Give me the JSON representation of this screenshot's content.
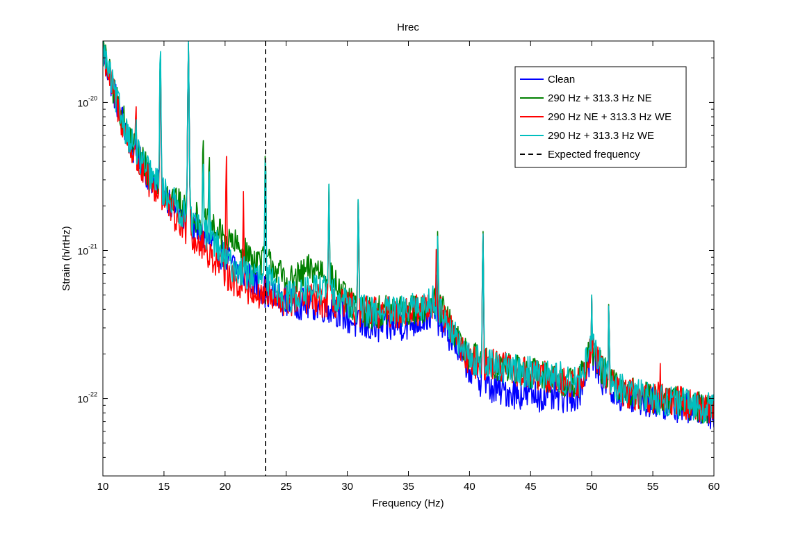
{
  "chart_data": {
    "type": "line",
    "title": "Hrec",
    "xlabel": "Frequency (Hz)",
    "ylabel": "Strain (h/rtHz)",
    "xlim": [
      10,
      60
    ],
    "ylim": [
      3e-23,
      2.6e-20
    ],
    "yscale": "log",
    "grid": false,
    "legend_position": "top-right",
    "x_ticks": [
      10,
      15,
      20,
      25,
      30,
      35,
      40,
      45,
      50,
      55,
      60
    ],
    "y_ticks": [
      {
        "value": 1e-22,
        "base": "10",
        "exp": "-22"
      },
      {
        "value": 1e-21,
        "base": "10",
        "exp": "-21"
      },
      {
        "value": 1e-20,
        "base": "10",
        "exp": "-20"
      }
    ],
    "vline": {
      "x": 23.3,
      "name": "Expected frequency",
      "color": "#000000",
      "style": "dashed"
    },
    "series": [
      {
        "name": "Clean",
        "color": "#0000ff",
        "baseline": [
          [
            10,
            2.2e-20
          ],
          [
            11,
            1.1e-20
          ],
          [
            12,
            6e-21
          ],
          [
            13,
            4e-21
          ],
          [
            14,
            3e-21
          ],
          [
            15,
            2.5e-21
          ],
          [
            16,
            1.9e-21
          ],
          [
            17,
            1.5e-21
          ],
          [
            18,
            1.3e-21
          ],
          [
            19,
            1.1e-21
          ],
          [
            20,
            9e-22
          ],
          [
            21,
            7.5e-22
          ],
          [
            22,
            6.5e-22
          ],
          [
            23,
            5.5e-22
          ],
          [
            24,
            4.8e-22
          ],
          [
            25,
            4.6e-22
          ],
          [
            26,
            4.4e-22
          ],
          [
            27,
            4.3e-22
          ],
          [
            28,
            4.2e-22
          ],
          [
            29,
            4e-22
          ],
          [
            30,
            3.5e-22
          ],
          [
            31,
            3.1e-22
          ],
          [
            32,
            3e-22
          ],
          [
            33,
            3e-22
          ],
          [
            34,
            3.1e-22
          ],
          [
            35,
            3.2e-22
          ],
          [
            36,
            3.4e-22
          ],
          [
            37,
            3.8e-22
          ],
          [
            38,
            3e-22
          ],
          [
            39,
            2.2e-22
          ],
          [
            40,
            1.6e-22
          ],
          [
            41,
            1.3e-22
          ],
          [
            42,
            1.15e-22
          ],
          [
            43,
            1.12e-22
          ],
          [
            44,
            1.08e-22
          ],
          [
            45,
            1.06e-22
          ],
          [
            46,
            1.04e-22
          ],
          [
            47,
            1.02e-22
          ],
          [
            48,
            1.02e-22
          ],
          [
            49,
            1.1e-22
          ],
          [
            50,
            2e-22
          ],
          [
            51,
            1.3e-22
          ],
          [
            52,
            1.05e-22
          ],
          [
            53,
            9.8e-23
          ],
          [
            54,
            9.6e-23
          ],
          [
            55,
            9.4e-23
          ],
          [
            56,
            9.1e-23
          ],
          [
            57,
            8.8e-23
          ],
          [
            58,
            8.5e-23
          ],
          [
            59,
            8.2e-23
          ],
          [
            60,
            8e-23
          ]
        ],
        "peaks": [
          [
            14.7,
            2e-20
          ],
          [
            17.0,
            2.5e-20
          ],
          [
            37.3,
            8e-22
          ],
          [
            41.1,
            1.3e-21
          ],
          [
            50.0,
            4.8e-22
          ],
          [
            51.4,
            4.3e-22
          ]
        ]
      },
      {
        "name": "290 Hz + 313.3 Hz NE",
        "color": "#008000",
        "baseline": [
          [
            10,
            2.3e-20
          ],
          [
            11,
            1.1e-20
          ],
          [
            12,
            6.3e-21
          ],
          [
            13,
            4.4e-21
          ],
          [
            14,
            3.2e-21
          ],
          [
            15,
            2.6e-21
          ],
          [
            16,
            2.1e-21
          ],
          [
            17,
            1.8e-21
          ],
          [
            18,
            1.6e-21
          ],
          [
            19,
            1.4e-21
          ],
          [
            20,
            1.2e-21
          ],
          [
            21,
            1.05e-21
          ],
          [
            22,
            9e-22
          ],
          [
            23,
            8.5e-22
          ],
          [
            24,
            8e-22
          ],
          [
            25,
            6e-22
          ],
          [
            26,
            6.5e-22
          ],
          [
            27,
            7.5e-22
          ],
          [
            28,
            7.5e-22
          ],
          [
            29,
            6e-22
          ],
          [
            30,
            4.5e-22
          ],
          [
            31,
            4e-22
          ],
          [
            32,
            3.8e-22
          ],
          [
            33,
            3.9e-22
          ],
          [
            34,
            3.9e-22
          ],
          [
            35,
            3.9e-22
          ],
          [
            36,
            4e-22
          ],
          [
            37,
            4.5e-22
          ],
          [
            38,
            3.7e-22
          ],
          [
            39,
            2.5e-22
          ],
          [
            40,
            2e-22
          ],
          [
            41,
            1.8e-22
          ],
          [
            42,
            1.7e-22
          ],
          [
            43,
            1.6e-22
          ],
          [
            44,
            1.55e-22
          ],
          [
            45,
            1.5e-22
          ],
          [
            46,
            1.45e-22
          ],
          [
            47,
            1.35e-22
          ],
          [
            48,
            1.3e-22
          ],
          [
            49,
            1.3e-22
          ],
          [
            50,
            2.2e-22
          ],
          [
            51,
            1.5e-22
          ],
          [
            52,
            1.2e-22
          ],
          [
            53,
            1.1e-22
          ],
          [
            54,
            1.05e-22
          ],
          [
            55,
            1e-22
          ],
          [
            56,
            9.8e-23
          ],
          [
            57,
            9.5e-23
          ],
          [
            58,
            9e-23
          ],
          [
            59,
            8.8e-23
          ],
          [
            60,
            8.6e-23
          ]
        ],
        "peaks": [
          [
            12.7,
            9e-21
          ],
          [
            14.7,
            2.3e-20
          ],
          [
            17.0,
            2.5e-20
          ],
          [
            18.2,
            6.5e-21
          ],
          [
            18.7,
            5e-21
          ],
          [
            23.3,
            5.1e-21
          ],
          [
            28.5,
            2.8e-21
          ],
          [
            30.9,
            2.3e-21
          ],
          [
            37.4,
            1.4e-21
          ],
          [
            41.1,
            1.4e-21
          ],
          [
            50.0,
            5e-22
          ],
          [
            51.4,
            4.5e-22
          ]
        ]
      },
      {
        "name": "290 Hz NE + 313.3 Hz WE",
        "color": "#ff0000",
        "baseline": [
          [
            10,
            2.2e-20
          ],
          [
            11,
            1.05e-20
          ],
          [
            12,
            5.5e-21
          ],
          [
            13,
            3.6e-21
          ],
          [
            14,
            2.7e-21
          ],
          [
            15,
            2.2e-21
          ],
          [
            16,
            1.6e-21
          ],
          [
            17,
            1.3e-21
          ],
          [
            18,
            1.1e-21
          ],
          [
            19,
            9e-22
          ],
          [
            20,
            7e-22
          ],
          [
            21,
            6e-22
          ],
          [
            22,
            5.5e-22
          ],
          [
            23,
            5e-22
          ],
          [
            24,
            4.5e-22
          ],
          [
            25,
            4.5e-22
          ],
          [
            26,
            4.6e-22
          ],
          [
            27,
            4.7e-22
          ],
          [
            28,
            4.5e-22
          ],
          [
            29,
            4.4e-22
          ],
          [
            30,
            4.2e-22
          ],
          [
            31,
            3.9e-22
          ],
          [
            32,
            3.8e-22
          ],
          [
            33,
            3.8e-22
          ],
          [
            34,
            3.8e-22
          ],
          [
            35,
            3.9e-22
          ],
          [
            36,
            4e-22
          ],
          [
            37,
            4.5e-22
          ],
          [
            38,
            3.5e-22
          ],
          [
            39,
            2.5e-22
          ],
          [
            40,
            1.8e-22
          ],
          [
            41,
            1.7e-22
          ],
          [
            42,
            1.7e-22
          ],
          [
            43,
            1.6e-22
          ],
          [
            44,
            1.5e-22
          ],
          [
            45,
            1.45e-22
          ],
          [
            46,
            1.4e-22
          ],
          [
            47,
            1.35e-22
          ],
          [
            48,
            1.3e-22
          ],
          [
            49,
            1.3e-22
          ],
          [
            50,
            2.2e-22
          ],
          [
            51,
            1.45e-22
          ],
          [
            52,
            1.15e-22
          ],
          [
            53,
            1.08e-22
          ],
          [
            54,
            1.05e-22
          ],
          [
            55,
            1.02e-22
          ],
          [
            56,
            1e-22
          ],
          [
            57,
            9.5e-23
          ],
          [
            58,
            9e-23
          ],
          [
            59,
            8.8e-23
          ],
          [
            60,
            8.5e-23
          ]
        ],
        "peaks": [
          [
            12.7,
            1.1e-20
          ],
          [
            14.7,
            2.2e-20
          ],
          [
            17.0,
            2.5e-20
          ],
          [
            20.1,
            4.5e-21
          ],
          [
            21.5,
            2.5e-21
          ],
          [
            23.3,
            7.5e-22
          ],
          [
            28.5,
            2.5e-21
          ],
          [
            30.9,
            2.2e-21
          ],
          [
            37.3,
            1.2e-21
          ],
          [
            41.1,
            1.35e-21
          ],
          [
            50.0,
            4.8e-22
          ],
          [
            51.4,
            4.4e-22
          ],
          [
            55.6,
            1.8e-22
          ]
        ]
      },
      {
        "name": "290 Hz + 313.3 Hz WE",
        "color": "#00bfbf",
        "baseline": [
          [
            10,
            2.3e-20
          ],
          [
            11,
            1.1e-20
          ],
          [
            12,
            6.2e-21
          ],
          [
            13,
            4.2e-21
          ],
          [
            14,
            3.1e-21
          ],
          [
            15,
            2.5e-21
          ],
          [
            16,
            2e-21
          ],
          [
            17,
            1.6e-21
          ],
          [
            18,
            1.4e-21
          ],
          [
            19,
            1.2e-21
          ],
          [
            20,
            8.5e-22
          ],
          [
            21,
            7.5e-22
          ],
          [
            22,
            6.8e-22
          ],
          [
            23,
            6.5e-22
          ],
          [
            24,
            6e-22
          ],
          [
            25,
            4.8e-22
          ],
          [
            26,
            5e-22
          ],
          [
            27,
            5.5e-22
          ],
          [
            28,
            5.5e-22
          ],
          [
            29,
            5e-22
          ],
          [
            30,
            4.5e-22
          ],
          [
            31,
            4e-22
          ],
          [
            32,
            3.9e-22
          ],
          [
            33,
            3.9e-22
          ],
          [
            34,
            3.8e-22
          ],
          [
            35,
            3.9e-22
          ],
          [
            36,
            4.2e-22
          ],
          [
            37,
            4.6e-22
          ],
          [
            38,
            3.6e-22
          ],
          [
            39,
            2.4e-22
          ],
          [
            40,
            1.85e-22
          ],
          [
            41,
            1.75e-22
          ],
          [
            42,
            1.65e-22
          ],
          [
            43,
            1.6e-22
          ],
          [
            44,
            1.55e-22
          ],
          [
            45,
            1.5e-22
          ],
          [
            46,
            1.45e-22
          ],
          [
            47,
            1.4e-22
          ],
          [
            48,
            1.35e-22
          ],
          [
            49,
            1.3e-22
          ],
          [
            50,
            2.3e-22
          ],
          [
            51,
            1.5e-22
          ],
          [
            52,
            1.2e-22
          ],
          [
            53,
            1.1e-22
          ],
          [
            54,
            1.05e-22
          ],
          [
            55,
            1e-22
          ],
          [
            56,
            9.8e-23
          ],
          [
            57,
            9.4e-23
          ],
          [
            58,
            9e-23
          ],
          [
            59,
            8.8e-23
          ],
          [
            60,
            8.5e-23
          ]
        ],
        "peaks": [
          [
            12.7,
            9e-21
          ],
          [
            14.7,
            2.6e-20
          ],
          [
            17.0,
            2.6e-20
          ],
          [
            18.2,
            4.5e-21
          ],
          [
            18.7,
            4e-21
          ],
          [
            23.3,
            4.8e-21
          ],
          [
            28.5,
            2.8e-21
          ],
          [
            30.9,
            2.3e-21
          ],
          [
            37.4,
            1.3e-21
          ],
          [
            41.1,
            1.35e-21
          ],
          [
            50.0,
            5e-22
          ],
          [
            51.4,
            4.4e-22
          ]
        ]
      }
    ]
  }
}
